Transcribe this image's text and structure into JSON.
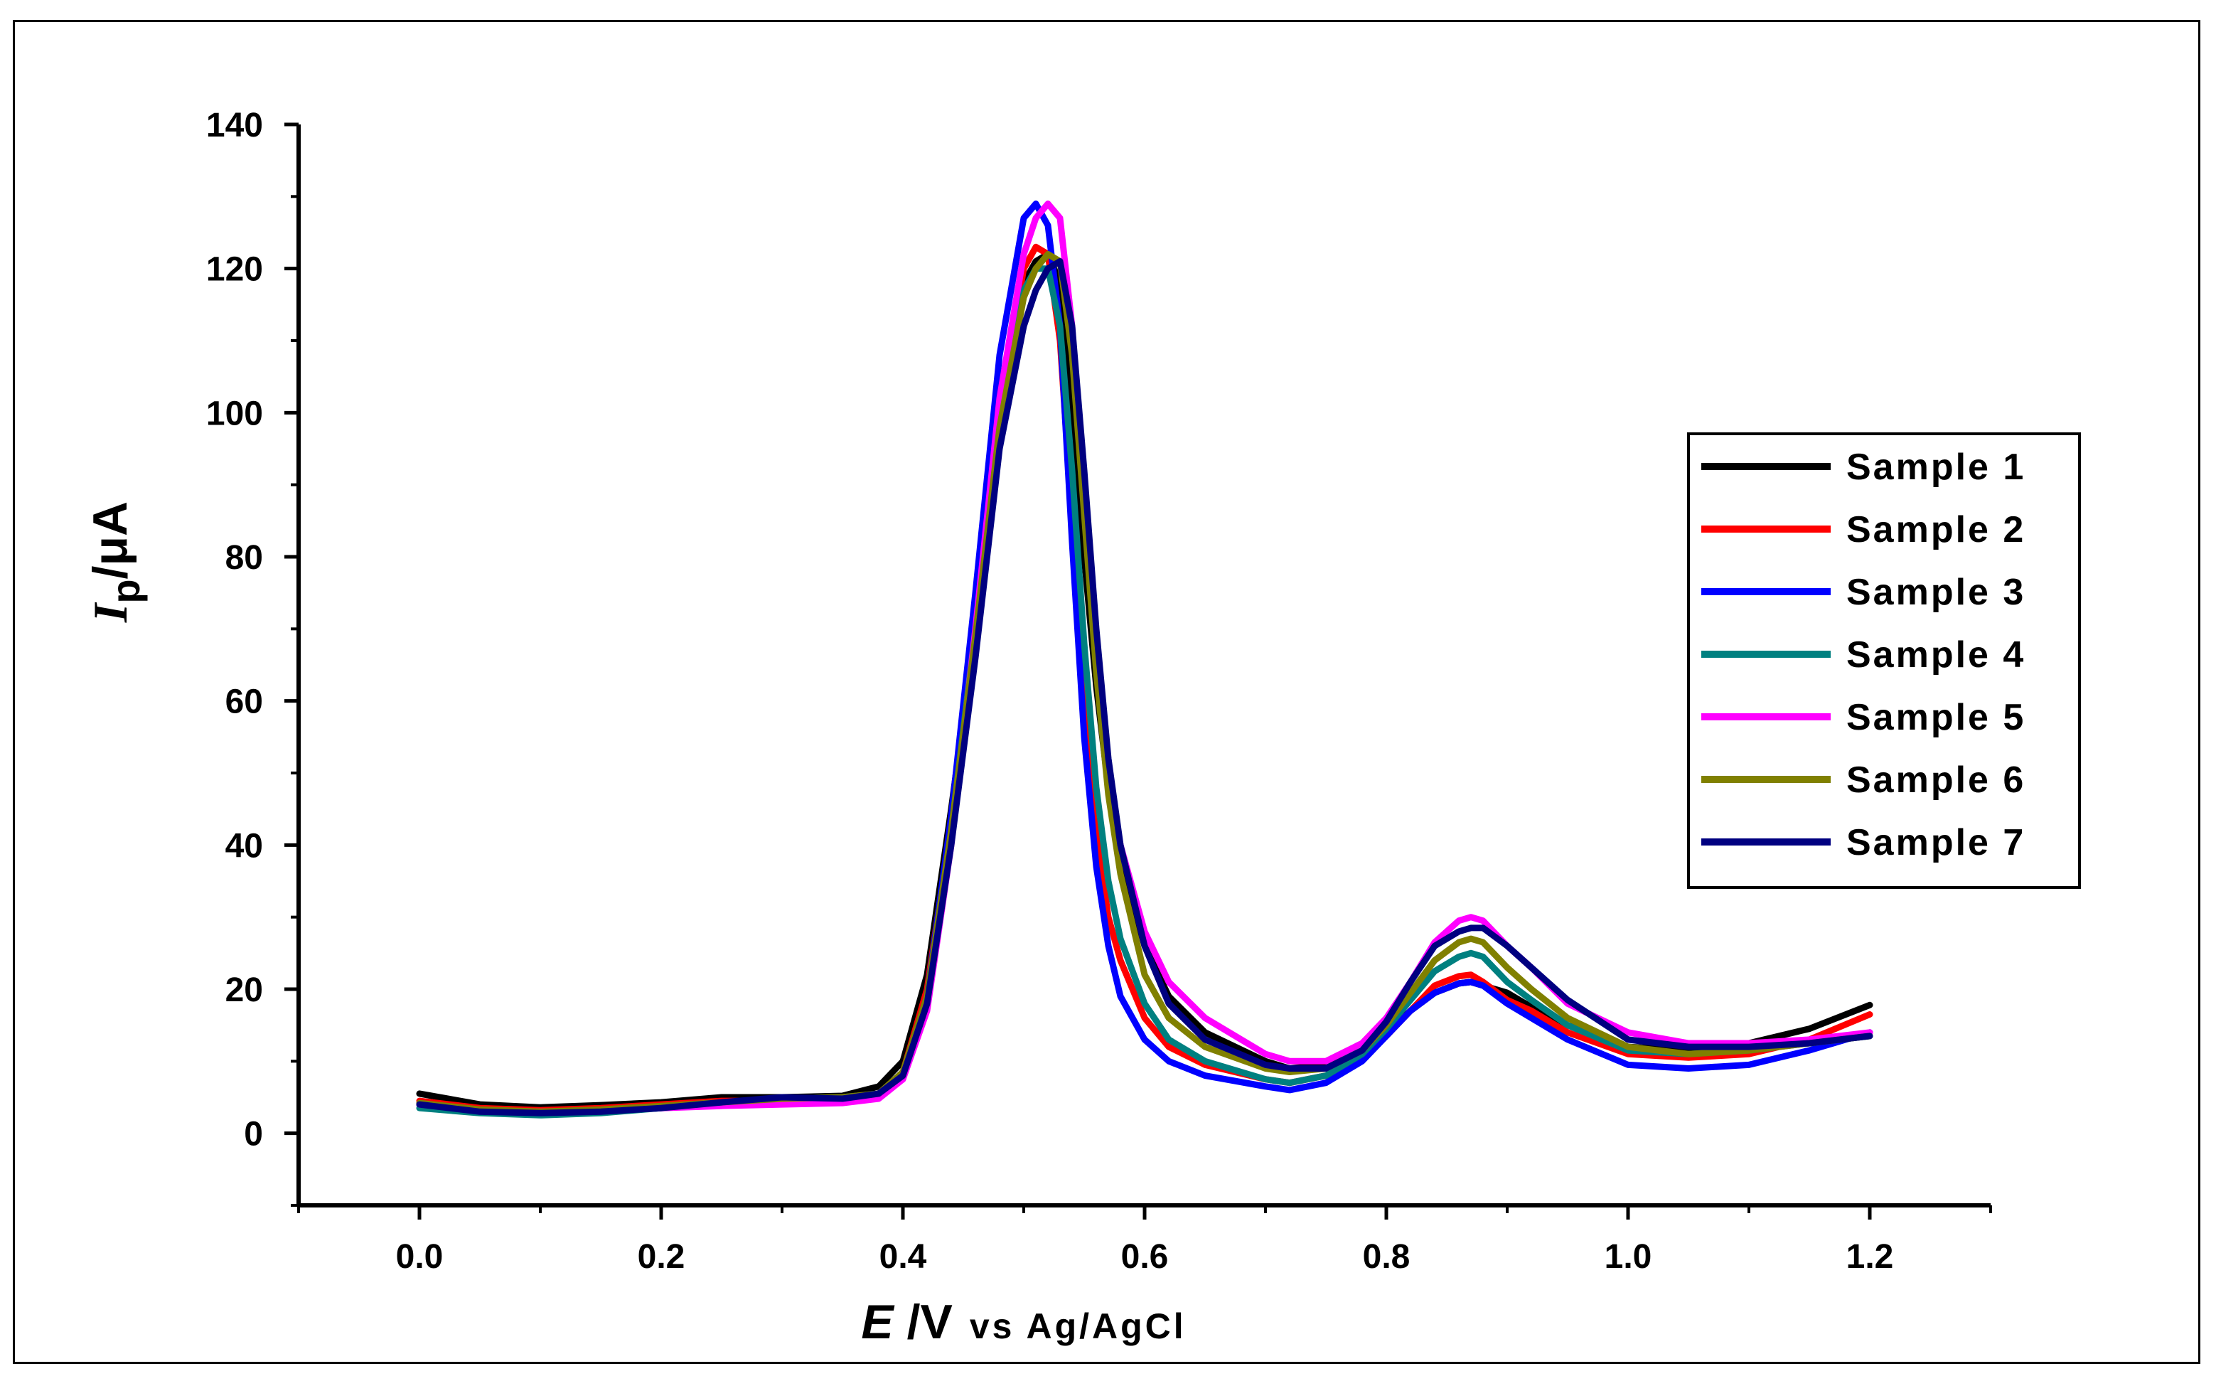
{
  "chart_data": {
    "type": "line",
    "xlabel": {
      "symbol": "E",
      "unit": " /V",
      "ref": "vs Ag/AgCl"
    },
    "ylabel": {
      "symbol": "I",
      "sub": "p",
      "unit": "/μA"
    },
    "xlim": [
      -0.1,
      1.3
    ],
    "ylim": [
      -10,
      140
    ],
    "xticks": [
      0.0,
      0.2,
      0.4,
      0.6,
      0.8,
      1.0,
      1.2
    ],
    "xtick_labels": [
      "0.0",
      "0.2",
      "0.4",
      "0.6",
      "0.8",
      "1.0",
      "1.2"
    ],
    "yticks": [
      0,
      20,
      40,
      60,
      80,
      100,
      120,
      140
    ],
    "ytick_labels": [
      "0",
      "20",
      "40",
      "60",
      "80",
      "100",
      "120",
      "140"
    ],
    "grid": false,
    "legend_position": "right",
    "x": [
      0.0,
      0.05,
      0.1,
      0.15,
      0.2,
      0.25,
      0.3,
      0.35,
      0.38,
      0.4,
      0.42,
      0.44,
      0.46,
      0.48,
      0.5,
      0.51,
      0.52,
      0.53,
      0.54,
      0.55,
      0.56,
      0.57,
      0.58,
      0.6,
      0.62,
      0.65,
      0.7,
      0.72,
      0.75,
      0.78,
      0.8,
      0.82,
      0.84,
      0.86,
      0.87,
      0.88,
      0.9,
      0.92,
      0.95,
      1.0,
      1.05,
      1.1,
      1.15,
      1.2
    ],
    "series": [
      {
        "name": "Sample 1",
        "color": "#000000",
        "values": [
          5.5,
          4.0,
          3.6,
          3.9,
          4.3,
          5.0,
          5.0,
          5.2,
          6.5,
          10,
          22,
          45,
          70,
          98,
          118,
          121,
          122,
          118,
          100,
          80,
          62,
          48,
          38,
          26,
          19,
          14,
          10,
          9,
          9.5,
          11,
          14,
          17,
          19.5,
          20.8,
          21,
          20.5,
          19.5,
          17.5,
          15,
          12,
          11.5,
          12.5,
          14.5,
          17.8
        ]
      },
      {
        "name": "Sample 2",
        "color": "#ff0000",
        "values": [
          4.5,
          3.5,
          3.2,
          3.5,
          4.0,
          4.5,
          4.5,
          4.8,
          5.5,
          8.5,
          20,
          43,
          70,
          100,
          120,
          123,
          122,
          110,
          85,
          60,
          42,
          30,
          24,
          16,
          12,
          9.5,
          7.5,
          7,
          8,
          10.5,
          13.5,
          17,
          20.5,
          21.8,
          22,
          21,
          18.5,
          17,
          14,
          11,
          10.5,
          11,
          13,
          16.5
        ]
      },
      {
        "name": "Sample 3",
        "color": "#0000ff",
        "values": [
          4.0,
          3.0,
          2.8,
          3.0,
          3.5,
          4.0,
          4.2,
          4.5,
          5.0,
          8,
          19,
          44,
          75,
          108,
          127,
          129,
          126,
          112,
          82,
          55,
          37,
          26,
          19,
          13,
          10,
          8,
          6.5,
          6,
          7,
          10,
          13.5,
          17,
          19.5,
          20.8,
          21,
          20.5,
          18,
          16,
          13,
          9.5,
          9,
          9.5,
          11.5,
          14
        ]
      },
      {
        "name": "Sample 4",
        "color": "#008080",
        "values": [
          3.5,
          2.8,
          2.5,
          2.8,
          3.5,
          4.2,
          4.8,
          5.0,
          5.5,
          8.5,
          19,
          42,
          70,
          100,
          117,
          120,
          120,
          112,
          92,
          68,
          48,
          35,
          27,
          18,
          13,
          10,
          7.5,
          7,
          8,
          11,
          14.5,
          18.5,
          22.5,
          24.5,
          25,
          24.5,
          21,
          18.5,
          15,
          11.5,
          11,
          11.5,
          12.5,
          13.5
        ]
      },
      {
        "name": "Sample 5",
        "color": "#ff00ff",
        "values": [
          4.0,
          3.2,
          3.0,
          3.2,
          3.5,
          3.8,
          4.0,
          4.2,
          4.8,
          7.5,
          17,
          40,
          70,
          102,
          122,
          127,
          129,
          127,
          112,
          88,
          66,
          50,
          40,
          28,
          21,
          16,
          11,
          10,
          10,
          12.5,
          16,
          21,
          26.5,
          29.5,
          30,
          29.5,
          26,
          23,
          18,
          14,
          12.5,
          12.5,
          13,
          14
        ]
      },
      {
        "name": "Sample 6",
        "color": "#808000",
        "values": [
          4.2,
          3.3,
          3.0,
          3.3,
          3.8,
          4.3,
          4.8,
          5.0,
          5.5,
          8.5,
          19,
          42,
          69,
          98,
          116,
          120,
          122,
          121,
          108,
          86,
          64,
          47,
          36,
          22,
          16,
          12,
          9,
          8.5,
          9,
          11.5,
          15,
          19.5,
          24,
          26.5,
          27,
          26.5,
          23,
          20,
          16,
          12,
          11,
          11.5,
          12.5,
          13.5
        ]
      },
      {
        "name": "Sample 7",
        "color": "#000080",
        "values": [
          4.0,
          3.0,
          2.8,
          3.0,
          3.5,
          4.3,
          5.0,
          4.8,
          5.5,
          8,
          18,
          40,
          66,
          95,
          112,
          117,
          120,
          121,
          112,
          92,
          70,
          52,
          40,
          26,
          18,
          13,
          9.5,
          9,
          9,
          11.5,
          15.5,
          21,
          26,
          28,
          28.5,
          28.5,
          26,
          23,
          18.5,
          13,
          12,
          12,
          12.5,
          13.5
        ]
      }
    ]
  }
}
